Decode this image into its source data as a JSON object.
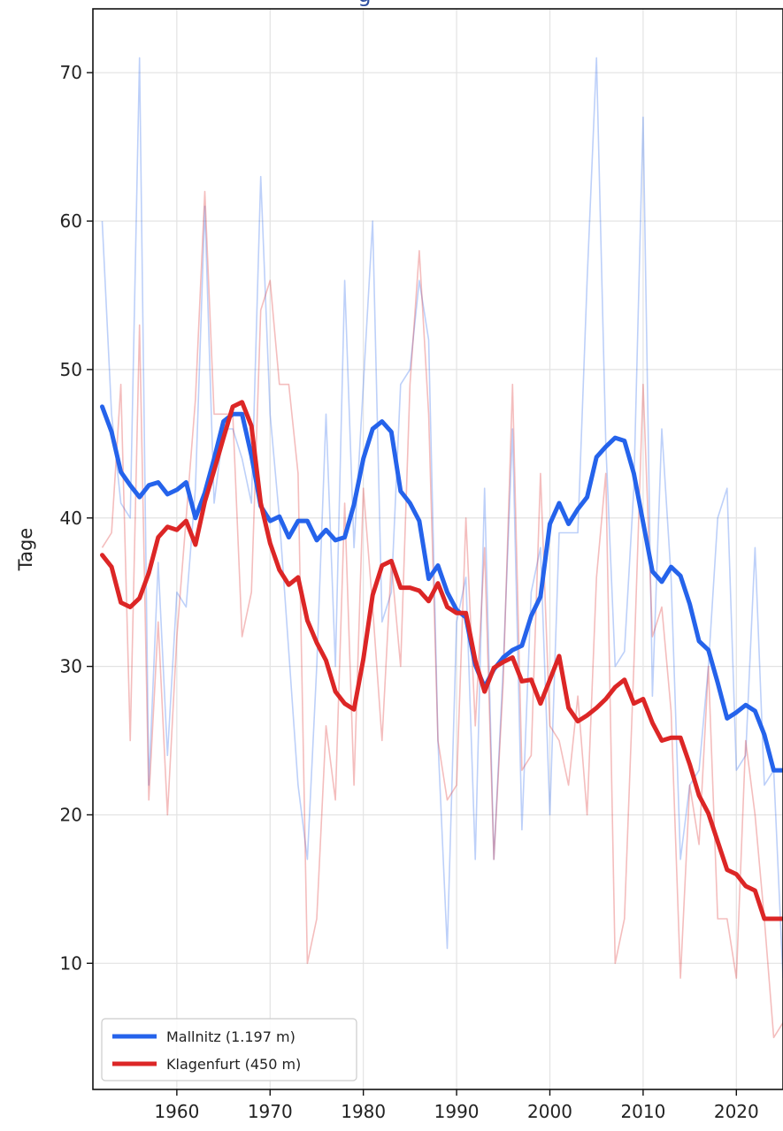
{
  "chart_data": {
    "type": "line",
    "title": "",
    "xlabel": "",
    "ylabel": "Tage",
    "xlim": [
      1951,
      2025
    ],
    "ylim": [
      1.5,
      74.3
    ],
    "xticks": [
      1960,
      1970,
      1980,
      1990,
      2000,
      2010,
      2020
    ],
    "yticks": [
      10,
      20,
      30,
      40,
      50,
      60,
      70
    ],
    "grid": true,
    "legend_position": "lower-left",
    "x": [
      1952,
      1953,
      1954,
      1955,
      1956,
      1957,
      1958,
      1959,
      1960,
      1961,
      1962,
      1963,
      1964,
      1965,
      1966,
      1967,
      1968,
      1969,
      1970,
      1971,
      1972,
      1973,
      1974,
      1975,
      1976,
      1977,
      1978,
      1979,
      1980,
      1981,
      1982,
      1983,
      1984,
      1985,
      1986,
      1987,
      1988,
      1989,
      1990,
      1991,
      1992,
      1993,
      1994,
      1995,
      1996,
      1997,
      1998,
      1999,
      2000,
      2001,
      2002,
      2003,
      2004,
      2005,
      2006,
      2007,
      2008,
      2009,
      2010,
      2011,
      2012,
      2013,
      2014,
      2015,
      2016,
      2017,
      2018,
      2019,
      2020,
      2021,
      2022,
      2023,
      2024,
      2025
    ],
    "series": [
      {
        "name": "Mallnitz (1.197 m)",
        "color": "#2563eb",
        "values": [
          60,
          47,
          41,
          40,
          71,
          22,
          37,
          24,
          35,
          34,
          42,
          61,
          41,
          46,
          46,
          44,
          41,
          63,
          47,
          40,
          31,
          22,
          17,
          30,
          47,
          30,
          56,
          38,
          49,
          60,
          33,
          35,
          49,
          50,
          56,
          52,
          25,
          11,
          33,
          36,
          17,
          42,
          17,
          30,
          46,
          19,
          35,
          38,
          20,
          39,
          39,
          39,
          56,
          71,
          45,
          30,
          31,
          42,
          67,
          28,
          46,
          36,
          17,
          22,
          23,
          30,
          40,
          42,
          23,
          24,
          38,
          22,
          23,
          9
        ],
        "trend": [
          47.5,
          45.8,
          43.1,
          42.2,
          41.4,
          42.2,
          42.4,
          41.6,
          41.9,
          42.4,
          40.0,
          41.7,
          44.0,
          46.5,
          47.0,
          47.0,
          44.2,
          40.8,
          39.8,
          40.1,
          38.7,
          39.8,
          39.8,
          38.5,
          39.2,
          38.5,
          38.7,
          40.9,
          44.0,
          46.0,
          46.5,
          45.8,
          41.8,
          41.0,
          39.8,
          35.9,
          36.8,
          35.0,
          33.8,
          33.3,
          30.1,
          28.6,
          29.8,
          30.6,
          31.1,
          31.4,
          33.4,
          34.7,
          39.6,
          41.0,
          39.6,
          40.6,
          41.4,
          44.1,
          44.8,
          45.4,
          45.2,
          43.0,
          39.7,
          36.4,
          35.7,
          36.7,
          36.1,
          34.2,
          31.7,
          31.1,
          28.9,
          26.5,
          26.9,
          27.4,
          27.0,
          25.4,
          23.0,
          23.0
        ]
      },
      {
        "name": "Klagenfurt (450 m)",
        "color": "#dc2626",
        "values": [
          38,
          39,
          49,
          25,
          53,
          21,
          33,
          20,
          32,
          40,
          48,
          62,
          47,
          47,
          47,
          32,
          35,
          54,
          56,
          49,
          49,
          43,
          10,
          13,
          26,
          21,
          41,
          22,
          42,
          34,
          25,
          37,
          30,
          49,
          58,
          47,
          25,
          21,
          22,
          40,
          26,
          38,
          17,
          29,
          49,
          23,
          24,
          43,
          26,
          25,
          22,
          28,
          20,
          36,
          43,
          10,
          13,
          30,
          49,
          32,
          34,
          27,
          9,
          22,
          18,
          30,
          13,
          13,
          9,
          25,
          20,
          13,
          5,
          6
        ],
        "trend": [
          37.5,
          36.7,
          34.3,
          34.0,
          34.6,
          36.3,
          38.7,
          39.4,
          39.2,
          39.8,
          38.2,
          41.1,
          43.2,
          45.4,
          47.5,
          47.8,
          46.2,
          41.0,
          38.3,
          36.5,
          35.5,
          36.0,
          33.1,
          31.6,
          30.4,
          28.3,
          27.5,
          27.1,
          30.5,
          34.8,
          36.8,
          37.1,
          35.3,
          35.3,
          35.1,
          34.4,
          35.6,
          34.0,
          33.6,
          33.6,
          30.4,
          28.3,
          29.9,
          30.3,
          30.6,
          29.0,
          29.1,
          27.5,
          29.1,
          30.7,
          27.2,
          26.3,
          26.7,
          27.2,
          27.8,
          28.6,
          29.1,
          27.5,
          27.8,
          26.2,
          25.0,
          25.2,
          25.2,
          23.4,
          21.3,
          20.1,
          18.2,
          16.3,
          16.0,
          15.2,
          14.9,
          13.0,
          13.0,
          13.0
        ]
      }
    ],
    "title_fragment": "g"
  }
}
